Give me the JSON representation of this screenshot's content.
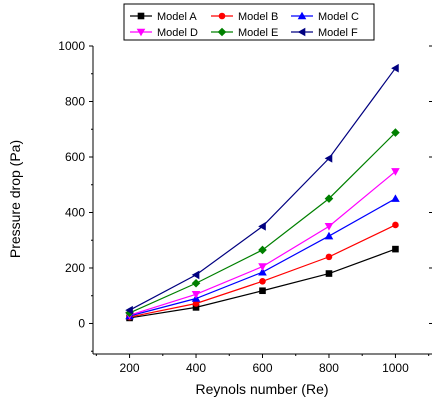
{
  "chart_data": {
    "type": "line",
    "xlabel": "Reynols number (Re)",
    "ylabel": "Pressure drop (Pa)",
    "x": [
      200,
      400,
      600,
      800,
      1000
    ],
    "xticks": [
      200,
      400,
      600,
      800,
      1000
    ],
    "yticks": [
      0,
      200,
      400,
      600,
      800,
      1000
    ],
    "xlim": [
      90,
      1110
    ],
    "ylim": [
      -110,
      1000
    ],
    "legend_position": "top",
    "series": [
      {
        "name": "Model A",
        "color": "#000000",
        "marker": "square",
        "values": [
          20,
          58,
          118,
          180,
          268
        ]
      },
      {
        "name": "Model B",
        "color": "#ff0000",
        "marker": "circle",
        "values": [
          23,
          72,
          152,
          240,
          355
        ]
      },
      {
        "name": "Model C",
        "color": "#0000ff",
        "marker": "triangle-up",
        "values": [
          27,
          90,
          185,
          315,
          450
        ]
      },
      {
        "name": "Model D",
        "color": "#ff00ff",
        "marker": "triangle-down",
        "values": [
          30,
          105,
          205,
          350,
          548
        ]
      },
      {
        "name": "Model E",
        "color": "#008000",
        "marker": "diamond",
        "values": [
          38,
          145,
          265,
          450,
          688
        ]
      },
      {
        "name": "Model F",
        "color": "#000080",
        "marker": "triangle-left",
        "values": [
          48,
          175,
          350,
          595,
          920
        ]
      }
    ]
  }
}
